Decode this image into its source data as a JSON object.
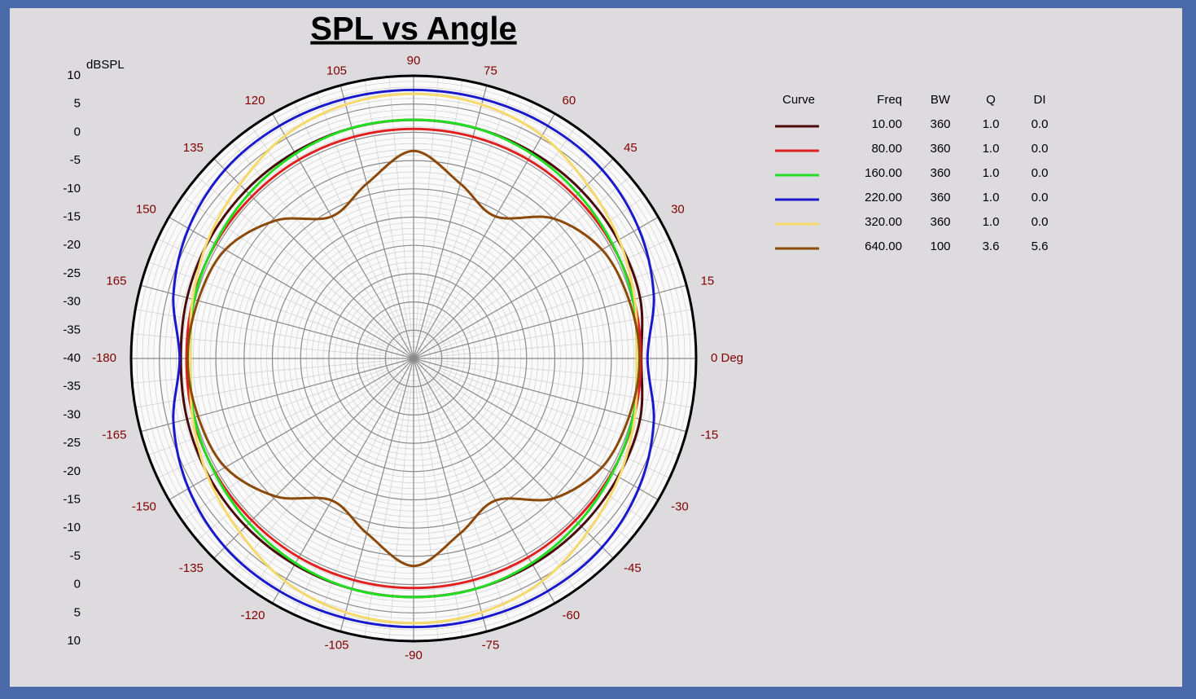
{
  "chart_data": {
    "type": "polar",
    "title": "SPL vs Angle",
    "r_label": "dBSPL",
    "rlim": [
      -40,
      10
    ],
    "rticks": [
      -40,
      -35,
      -30,
      -25,
      -20,
      -15,
      -10,
      -5,
      0,
      5,
      10
    ],
    "thetaticks": [
      {
        "value": 0,
        "label": "0 Deg"
      },
      15,
      30,
      45,
      60,
      75,
      90,
      105,
      120,
      135,
      150,
      165,
      -180,
      -165,
      -150,
      -135,
      -120,
      -105,
      -90,
      -75,
      -60,
      -45,
      -30,
      -15
    ],
    "grid": true,
    "theta": [
      -180,
      -165,
      -150,
      -135,
      -120,
      -105,
      -90,
      -75,
      -60,
      -45,
      -30,
      -15,
      0,
      15,
      30,
      45,
      60,
      75,
      90,
      105,
      120,
      135,
      150,
      165
    ],
    "series": [
      {
        "color": "#4a0a0a",
        "values": [
          1.2,
          1.5,
          1.8,
          2.0,
          2.1,
          2.2,
          2.2,
          2.2,
          2.1,
          2.0,
          1.8,
          1.5,
          0.3,
          1.5,
          1.8,
          2.0,
          2.1,
          2.2,
          2.2,
          2.2,
          2.1,
          2.0,
          1.8,
          1.5
        ]
      },
      {
        "color": "#e02020",
        "values": [
          0.2,
          0.4,
          0.5,
          0.5,
          0.6,
          0.6,
          0.6,
          0.6,
          0.6,
          0.5,
          0.5,
          0.4,
          0.2,
          0.4,
          0.5,
          0.5,
          0.6,
          0.6,
          0.6,
          0.6,
          0.6,
          0.5,
          0.5,
          0.4
        ]
      },
      {
        "color": "#22dd22",
        "values": [
          -0.5,
          0.2,
          0.6,
          1.2,
          1.8,
          2.2,
          2.2,
          2.2,
          1.8,
          1.2,
          0.6,
          0.2,
          -0.5,
          0.2,
          0.6,
          1.2,
          1.8,
          2.2,
          2.2,
          2.2,
          1.8,
          1.2,
          0.6,
          0.2
        ]
      },
      {
        "color": "#1a1acc",
        "values": [
          1.4,
          4.0,
          6.0,
          7.2,
          7.5,
          7.5,
          7.5,
          7.5,
          7.5,
          7.2,
          6.0,
          4.0,
          1.4,
          4.0,
          6.0,
          7.2,
          7.5,
          7.5,
          7.5,
          7.5,
          7.5,
          7.2,
          6.0,
          4.0
        ]
      },
      {
        "color": "#f5d96a",
        "values": [
          -0.5,
          0.5,
          2.0,
          3.5,
          5.5,
          6.5,
          6.8,
          6.5,
          5.5,
          3.5,
          2.0,
          0.5,
          -0.5,
          0.5,
          2.0,
          3.5,
          5.5,
          6.5,
          6.8,
          6.5,
          5.5,
          3.5,
          2.0,
          0.5
        ]
      },
      {
        "color": "#8b4a0a",
        "values": [
          0,
          -0.5,
          -1.5,
          -5.5,
          -11,
          -8,
          -3.3,
          -8,
          -11,
          -5,
          -1.5,
          -0.5,
          0,
          -0.5,
          -1.5,
          -5,
          -11,
          -8,
          -3.3,
          -8,
          -11,
          -5.5,
          -1.5,
          -0.5
        ]
      }
    ],
    "table": {
      "columns": [
        "Curve",
        "Freq",
        "BW",
        "Q",
        "DI"
      ],
      "rows": [
        [
          "10.00",
          "360",
          "1.0",
          "0.0"
        ],
        [
          "80.00",
          "360",
          "1.0",
          "0.0"
        ],
        [
          "160.00",
          "360",
          "1.0",
          "0.0"
        ],
        [
          "220.00",
          "360",
          "1.0",
          "0.0"
        ],
        [
          "320.00",
          "360",
          "1.0",
          "0.0"
        ],
        [
          "640.00",
          "100",
          "3.6",
          "5.6"
        ]
      ]
    }
  }
}
